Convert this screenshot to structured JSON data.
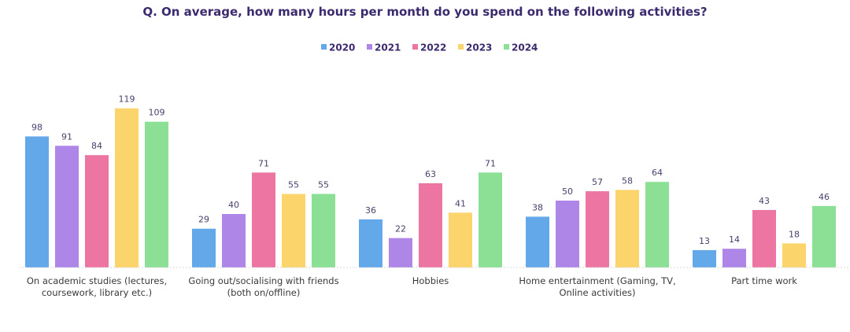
{
  "chart_data": {
    "type": "bar",
    "title": "Q. On average, how many hours per month do you spend on the following activities?",
    "categories": [
      [
        "On academic studies (lectures,",
        "coursework, library etc.)"
      ],
      [
        "Going out/socialising with friends",
        "(both on/offline)"
      ],
      [
        "Hobbies"
      ],
      [
        "Home entertainment (Gaming, TV,",
        "Online activities)"
      ],
      [
        "Part time work"
      ]
    ],
    "series": [
      {
        "name": "2020",
        "color": "#63a9ea",
        "values": [
          98,
          29,
          36,
          38,
          13
        ]
      },
      {
        "name": "2021",
        "color": "#ad86e8",
        "values": [
          91,
          40,
          22,
          50,
          14
        ]
      },
      {
        "name": "2022",
        "color": "#ec76a1",
        "values": [
          84,
          71,
          63,
          57,
          43
        ]
      },
      {
        "name": "2023",
        "color": "#fbd46c",
        "values": [
          119,
          55,
          41,
          58,
          18
        ]
      },
      {
        "name": "2024",
        "color": "#8be096",
        "values": [
          109,
          55,
          71,
          64,
          46
        ]
      }
    ],
    "ylim": [
      0,
      125
    ],
    "legend": "top-center",
    "grid": false
  }
}
